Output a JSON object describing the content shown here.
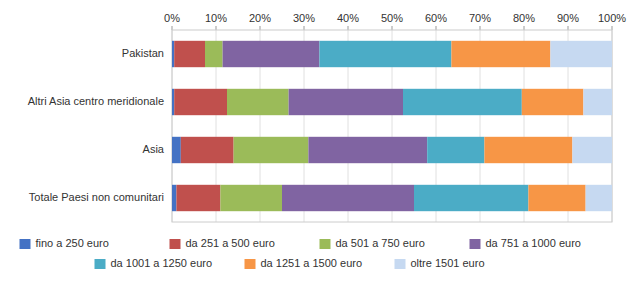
{
  "chart_data": {
    "type": "bar",
    "orientation": "horizontal",
    "stacked": true,
    "categories": [
      "Totale Paesi non comunitari",
      "Asia",
      "Altri Asia centro meridionale",
      "Pakistan"
    ],
    "series": [
      {
        "name": "fino a 250 euro",
        "color": "#4472c4",
        "values": [
          1.0,
          2.0,
          0.5,
          0.5
        ]
      },
      {
        "name": "da 251 a 500 euro",
        "color": "#c0504d",
        "values": [
          10.0,
          12.0,
          12.0,
          7.0
        ]
      },
      {
        "name": "da 501 a 750 euro",
        "color": "#9bbb59",
        "values": [
          14.0,
          17.0,
          14.0,
          4.0
        ]
      },
      {
        "name": "da 751 a 1000 euro",
        "color": "#8064a2",
        "values": [
          30.0,
          27.0,
          26.0,
          22.0
        ]
      },
      {
        "name": "da 1001 a 1250 euro",
        "color": "#4bacc6",
        "values": [
          26.0,
          13.0,
          27.0,
          30.0
        ]
      },
      {
        "name": "da 1251 a 1500 euro",
        "color": "#f79646",
        "values": [
          13.0,
          20.0,
          14.0,
          22.5
        ]
      },
      {
        "name": "oltre 1501 euro",
        "color": "#c6d9f1",
        "values": [
          6.0,
          9.0,
          6.5,
          14.0
        ]
      }
    ],
    "xlim": [
      0,
      100
    ],
    "xticks": [
      {
        "value": 0,
        "label": "0%"
      },
      {
        "value": 10,
        "label": "10%"
      },
      {
        "value": 20,
        "label": "20%"
      },
      {
        "value": 30,
        "label": "30%"
      },
      {
        "value": 40,
        "label": "40%"
      },
      {
        "value": 50,
        "label": "50%"
      },
      {
        "value": 60,
        "label": "60%"
      },
      {
        "value": 70,
        "label": "70%"
      },
      {
        "value": 80,
        "label": "80%"
      },
      {
        "value": 90,
        "label": "90%"
      },
      {
        "value": 100,
        "label": "100%"
      }
    ],
    "grid": true,
    "legend": "bottom"
  }
}
